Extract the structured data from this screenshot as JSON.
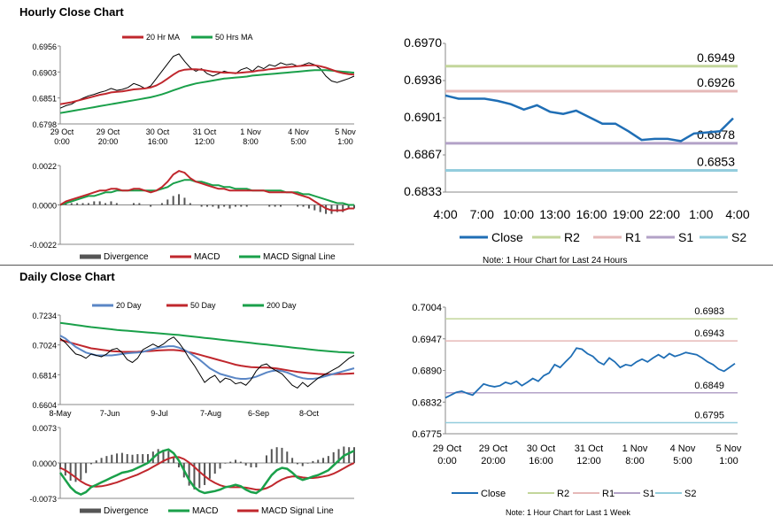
{
  "sections": {
    "hourly_title": "Hourly Close Chart",
    "daily_title": "Daily Close Chart"
  },
  "colors": {
    "close": "#1f6eb5",
    "ma_short": "#c0272d",
    "ma_long": "#1aa04a",
    "ma_200": "#1aa04a",
    "ma_20": "#5a86c5",
    "r2": "#c3d69b",
    "r1": "#e6b9b8",
    "s1": "#b3a2c7",
    "s2": "#93cddd",
    "divergence": "#555555",
    "price": "#000000"
  },
  "chart_data": [
    {
      "id": "hourly_price",
      "type": "line",
      "ylim": [
        0.6798,
        0.6956
      ],
      "yticks": [
        "0.6956",
        "0.6903",
        "0.6851",
        "0.6798"
      ],
      "xticks": [
        [
          "29 Oct",
          "0:00"
        ],
        [
          "29 Oct",
          "20:00"
        ],
        [
          "30 Oct",
          "16:00"
        ],
        [
          "31 Oct",
          "12:00"
        ],
        [
          "1 Nov",
          "8:00"
        ],
        [
          "4 Nov",
          "5:00"
        ],
        [
          "5 Nov",
          "1:00"
        ]
      ],
      "legend": [
        "20 Hr MA",
        "50 Hrs MA"
      ],
      "price": [
        0.683,
        0.6835,
        0.6838,
        0.6845,
        0.685,
        0.6855,
        0.6858,
        0.6862,
        0.6865,
        0.687,
        0.6866,
        0.6868,
        0.6872,
        0.688,
        0.6876,
        0.687,
        0.6875,
        0.689,
        0.6905,
        0.692,
        0.6935,
        0.694,
        0.6925,
        0.6912,
        0.6905,
        0.691,
        0.69,
        0.6895,
        0.69,
        0.6905,
        0.6902,
        0.69,
        0.6908,
        0.6912,
        0.6905,
        0.6915,
        0.691,
        0.6918,
        0.6915,
        0.6922,
        0.6918,
        0.692,
        0.6915,
        0.6918,
        0.6922,
        0.6918,
        0.691,
        0.6895,
        0.6885,
        0.6882,
        0.6886,
        0.689,
        0.6895
      ],
      "ma20": [
        0.6838,
        0.684,
        0.6842,
        0.6845,
        0.6848,
        0.6851,
        0.6854,
        0.6857,
        0.6859,
        0.6862,
        0.6863,
        0.6864,
        0.6866,
        0.6868,
        0.6869,
        0.687,
        0.6872,
        0.6876,
        0.6882,
        0.689,
        0.6898,
        0.6905,
        0.6908,
        0.6909,
        0.6909,
        0.6908,
        0.6906,
        0.6904,
        0.6903,
        0.6902,
        0.6902,
        0.6901,
        0.6902,
        0.6903,
        0.6904,
        0.6906,
        0.6907,
        0.6909,
        0.691,
        0.6912,
        0.6913,
        0.6914,
        0.6915,
        0.6916,
        0.6917,
        0.6917,
        0.6915,
        0.6912,
        0.6908,
        0.6904,
        0.6901,
        0.6899,
        0.6898
      ],
      "ma50": [
        0.682,
        0.6822,
        0.6824,
        0.6826,
        0.6828,
        0.683,
        0.6832,
        0.6834,
        0.6836,
        0.6838,
        0.684,
        0.6842,
        0.6844,
        0.6846,
        0.6848,
        0.685,
        0.6852,
        0.6855,
        0.6858,
        0.6862,
        0.6866,
        0.687,
        0.6874,
        0.6877,
        0.688,
        0.6882,
        0.6884,
        0.6886,
        0.6888,
        0.689,
        0.6891,
        0.6892,
        0.6893,
        0.6894,
        0.6896,
        0.6897,
        0.6898,
        0.6899,
        0.69,
        0.6901,
        0.6902,
        0.6903,
        0.6904,
        0.6905,
        0.6906,
        0.6907,
        0.6907,
        0.6907,
        0.6906,
        0.6905,
        0.6904,
        0.6903,
        0.6902
      ]
    },
    {
      "id": "hourly_macd",
      "type": "line",
      "ylim": [
        -0.0022,
        0.0022
      ],
      "yticks": [
        "0.0022",
        "0.0000",
        "-0.0022"
      ],
      "legend": [
        "Divergence",
        "MACD",
        "MACD Signal Line"
      ],
      "macd": [
        0.0,
        0.0002,
        0.0003,
        0.0004,
        0.0005,
        0.0006,
        0.0007,
        0.0008,
        0.0008,
        0.0009,
        0.0009,
        0.0008,
        0.0008,
        0.0009,
        0.0009,
        0.0008,
        0.0007,
        0.0008,
        0.001,
        0.0013,
        0.0017,
        0.0019,
        0.0018,
        0.0015,
        0.0013,
        0.0012,
        0.0011,
        0.001,
        0.0009,
        0.0009,
        0.0008,
        0.0008,
        0.0008,
        0.0008,
        0.0008,
        0.0008,
        0.0008,
        0.0007,
        0.0007,
        0.0007,
        0.0007,
        0.0007,
        0.0006,
        0.0005,
        0.0004,
        0.0002,
        0.0,
        -0.0002,
        -0.0003,
        -0.0003,
        -0.0003,
        -0.0002,
        -0.0002
      ],
      "signal": [
        0.0,
        0.0001,
        0.0002,
        0.0003,
        0.0004,
        0.0005,
        0.0005,
        0.0006,
        0.0007,
        0.0007,
        0.0008,
        0.0008,
        0.0008,
        0.0008,
        0.0008,
        0.0008,
        0.0008,
        0.0008,
        0.0009,
        0.001,
        0.0012,
        0.0013,
        0.0014,
        0.0014,
        0.0013,
        0.0013,
        0.0012,
        0.0011,
        0.0011,
        0.001,
        0.001,
        0.0009,
        0.0009,
        0.0009,
        0.0008,
        0.0008,
        0.0008,
        0.0008,
        0.0008,
        0.0008,
        0.0007,
        0.0007,
        0.0007,
        0.0006,
        0.0006,
        0.0005,
        0.0004,
        0.0003,
        0.0002,
        0.0001,
        0.0001,
        0.0,
        0.0
      ]
    },
    {
      "id": "hourly_levels",
      "type": "line",
      "ylim": [
        0.6833,
        0.697
      ],
      "yticks": [
        "0.6970",
        "0.6936",
        "0.6901",
        "0.6867",
        "0.6833"
      ],
      "xticks": [
        "4:00",
        "7:00",
        "10:00",
        "13:00",
        "16:00",
        "19:00",
        "22:00",
        "1:00",
        "4:00"
      ],
      "legend": [
        "Close",
        "R2",
        "R1",
        "S1",
        "S2"
      ],
      "levels": {
        "r2": 0.6949,
        "r1": 0.6926,
        "s1": 0.6878,
        "s2": 0.6853
      },
      "level_labels": {
        "r2": "0.6949",
        "r1": "0.6926",
        "s1": "0.6878",
        "s2": "0.6853"
      },
      "close": [
        0.6922,
        0.6919,
        0.6919,
        0.6919,
        0.6917,
        0.6914,
        0.6909,
        0.6913,
        0.6907,
        0.6905,
        0.6908,
        0.6902,
        0.6896,
        0.6896,
        0.6889,
        0.6881,
        0.6882,
        0.6882,
        0.688,
        0.6887,
        0.6888,
        0.6889,
        0.6901
      ],
      "note": "Note: 1 Hour Chart for Last 24 Hours"
    },
    {
      "id": "daily_price",
      "type": "line",
      "ylim": [
        0.6604,
        0.7234
      ],
      "yticks": [
        "0.7234",
        "0.7024",
        "0.6814",
        "0.6604"
      ],
      "xticks": [
        "8-May",
        "7-Jun",
        "9-Jul",
        "7-Aug",
        "6-Sep",
        "8-Oct"
      ],
      "legend": [
        "20 Day",
        "50 Day",
        "200 Day"
      ],
      "price": [
        0.707,
        0.704,
        0.7,
        0.696,
        0.695,
        0.693,
        0.696,
        0.695,
        0.694,
        0.696,
        0.699,
        0.7,
        0.697,
        0.692,
        0.69,
        0.693,
        0.699,
        0.701,
        0.703,
        0.701,
        0.703,
        0.706,
        0.708,
        0.704,
        0.699,
        0.693,
        0.688,
        0.682,
        0.676,
        0.679,
        0.681,
        0.676,
        0.679,
        0.678,
        0.675,
        0.676,
        0.674,
        0.678,
        0.684,
        0.688,
        0.689,
        0.686,
        0.684,
        0.682,
        0.678,
        0.674,
        0.672,
        0.676,
        0.673,
        0.676,
        0.679,
        0.681,
        0.683,
        0.685,
        0.687,
        0.69,
        0.693,
        0.695
      ],
      "ma20": [
        0.709,
        0.707,
        0.704,
        0.701,
        0.699,
        0.697,
        0.696,
        0.695,
        0.695,
        0.695,
        0.695,
        0.6955,
        0.696,
        0.6965,
        0.6968,
        0.697,
        0.6975,
        0.6985,
        0.6995,
        0.7005,
        0.701,
        0.7015,
        0.7015,
        0.7005,
        0.699,
        0.697,
        0.6945,
        0.692,
        0.689,
        0.686,
        0.684,
        0.682,
        0.681,
        0.68,
        0.679,
        0.6785,
        0.6785,
        0.679,
        0.68,
        0.6815,
        0.683,
        0.684,
        0.6845,
        0.684,
        0.683,
        0.6815,
        0.68,
        0.679,
        0.6785,
        0.6785,
        0.679,
        0.68,
        0.681,
        0.682,
        0.683,
        0.684,
        0.685,
        0.686
      ],
      "ma50": [
        0.706,
        0.705,
        0.704,
        0.703,
        0.702,
        0.701,
        0.7,
        0.6995,
        0.699,
        0.6985,
        0.698,
        0.6978,
        0.6976,
        0.6975,
        0.6975,
        0.6976,
        0.6978,
        0.698,
        0.6982,
        0.6985,
        0.6987,
        0.6988,
        0.6988,
        0.6985,
        0.698,
        0.6973,
        0.6965,
        0.6955,
        0.6945,
        0.6935,
        0.6925,
        0.6915,
        0.6905,
        0.6895,
        0.6885,
        0.6878,
        0.6872,
        0.6868,
        0.6866,
        0.6865,
        0.6864,
        0.6862,
        0.6858,
        0.6852,
        0.6846,
        0.684,
        0.6834,
        0.683,
        0.6826,
        0.6823,
        0.682,
        0.6818,
        0.6818,
        0.6818,
        0.6819,
        0.682,
        0.6822,
        0.6824
      ],
      "ma200": [
        0.718,
        0.7175,
        0.717,
        0.7165,
        0.716,
        0.7155,
        0.715,
        0.7146,
        0.7142,
        0.7138,
        0.7134,
        0.713,
        0.7127,
        0.7124,
        0.7121,
        0.7118,
        0.7115,
        0.7112,
        0.7109,
        0.7106,
        0.7103,
        0.71,
        0.7097,
        0.7094,
        0.709,
        0.7086,
        0.7082,
        0.7078,
        0.7074,
        0.707,
        0.7066,
        0.7062,
        0.7058,
        0.7054,
        0.705,
        0.7046,
        0.7042,
        0.7038,
        0.7034,
        0.703,
        0.7026,
        0.7022,
        0.7018,
        0.7014,
        0.701,
        0.7006,
        0.7002,
        0.6998,
        0.6994,
        0.699,
        0.6986,
        0.6983,
        0.698,
        0.6977,
        0.6974,
        0.6972,
        0.697,
        0.6968
      ]
    },
    {
      "id": "daily_macd",
      "type": "line",
      "ylim": [
        -0.0073,
        0.0073
      ],
      "yticks": [
        "0.0073",
        "0.0000",
        "-0.0073"
      ],
      "legend": [
        "Divergence",
        "MACD",
        "MACD Signal Line"
      ],
      "macd": [
        -0.002,
        -0.0035,
        -0.005,
        -0.006,
        -0.0065,
        -0.006,
        -0.005,
        -0.0045,
        -0.004,
        -0.0035,
        -0.003,
        -0.0025,
        -0.002,
        -0.0018,
        -0.0015,
        -0.001,
        -0.0005,
        0.0,
        0.001,
        0.002,
        0.0025,
        0.0028,
        0.002,
        0.0005,
        -0.0015,
        -0.0035,
        -0.005,
        -0.0058,
        -0.0062,
        -0.006,
        -0.0058,
        -0.0055,
        -0.005,
        -0.0048,
        -0.0045,
        -0.0048,
        -0.0055,
        -0.006,
        -0.0062,
        -0.0055,
        -0.004,
        -0.0025,
        -0.0015,
        -0.001,
        -0.0012,
        -0.002,
        -0.003,
        -0.0035,
        -0.0032,
        -0.0028,
        -0.0025,
        -0.002,
        -0.0015,
        -0.0005,
        0.0005,
        0.0015,
        0.002,
        0.0025
      ],
      "signal": [
        -0.001,
        -0.0015,
        -0.0022,
        -0.003,
        -0.0038,
        -0.0044,
        -0.0048,
        -0.0049,
        -0.0048,
        -0.0046,
        -0.0043,
        -0.004,
        -0.0036,
        -0.0032,
        -0.0028,
        -0.0024,
        -0.0019,
        -0.0014,
        -0.0008,
        -0.0002,
        0.0004,
        0.0009,
        0.0012,
        0.0012,
        0.0008,
        0.0001,
        -0.0008,
        -0.0018,
        -0.0027,
        -0.0035,
        -0.0041,
        -0.0046,
        -0.0049,
        -0.005,
        -0.005,
        -0.005,
        -0.0051,
        -0.0053,
        -0.0055,
        -0.0055,
        -0.0052,
        -0.0047,
        -0.004,
        -0.0034,
        -0.003,
        -0.0028,
        -0.0028,
        -0.003,
        -0.0031,
        -0.0031,
        -0.003,
        -0.0028,
        -0.0026,
        -0.0022,
        -0.0017,
        -0.0011,
        -0.0005,
        0.0
      ]
    },
    {
      "id": "daily_levels",
      "type": "line",
      "ylim": [
        0.6775,
        0.7004
      ],
      "yticks": [
        "0.7004",
        "0.6947",
        "0.6890",
        "0.6832",
        "0.6775"
      ],
      "xticks": [
        [
          "29 Oct",
          "0:00"
        ],
        [
          "29 Oct",
          "20:00"
        ],
        [
          "30 Oct",
          "16:00"
        ],
        [
          "31 Oct",
          "12:00"
        ],
        [
          "1 Nov",
          "8:00"
        ],
        [
          "4 Nov",
          "5:00"
        ],
        [
          "5 Nov",
          "1:00"
        ]
      ],
      "legend": [
        "Close",
        "R2",
        "R1",
        "S1",
        "S2"
      ],
      "levels": {
        "r2": 0.6983,
        "r1": 0.6943,
        "s1": 0.6849,
        "s2": 0.6795
      },
      "level_labels": {
        "r2": "0.6983",
        "r1": "0.6943",
        "s1": "0.6849",
        "s2": "0.6795"
      },
      "close": [
        0.684,
        0.6845,
        0.685,
        0.6852,
        0.6848,
        0.6845,
        0.6855,
        0.6865,
        0.6862,
        0.686,
        0.6862,
        0.6868,
        0.6865,
        0.687,
        0.6862,
        0.6868,
        0.6875,
        0.687,
        0.688,
        0.6885,
        0.69,
        0.6895,
        0.6905,
        0.6915,
        0.693,
        0.6928,
        0.692,
        0.6915,
        0.6905,
        0.69,
        0.6912,
        0.6905,
        0.6895,
        0.69,
        0.6898,
        0.6905,
        0.691,
        0.6905,
        0.6912,
        0.6918,
        0.6912,
        0.692,
        0.6915,
        0.6918,
        0.6922,
        0.692,
        0.6918,
        0.6912,
        0.6905,
        0.69,
        0.6892,
        0.6888,
        0.6895,
        0.6902
      ],
      "note": "Note: 1 Hour Chart for Last 1 Week"
    }
  ]
}
